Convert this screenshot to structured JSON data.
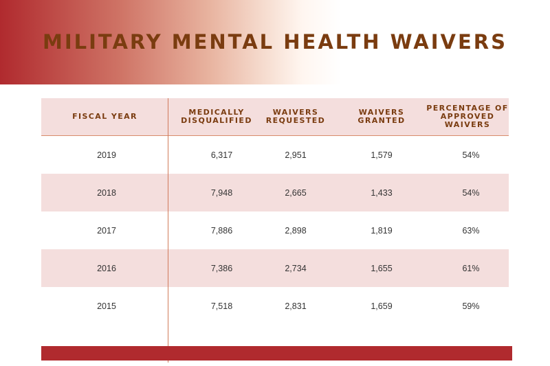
{
  "header": {
    "title": "MILITARY MENTAL HEALTH WAIVERS"
  },
  "colors": {
    "banner_red": "#b02a2e",
    "title_brown": "#7a3c10",
    "row_pink": "#f4dedd",
    "divider": "#d07a5a"
  },
  "table": {
    "columns": [
      {
        "label": "FISCAL YEAR"
      },
      {
        "label": "MEDICALLY\nDISQUALIFIED"
      },
      {
        "label": "WAIVERS\nREQUESTED"
      },
      {
        "label": "WAIVERS\nGRANTED"
      },
      {
        "label": "PERCENTAGE OF\nAPPROVED\nWAIVERS"
      }
    ],
    "rows": [
      [
        "2019",
        "6,317",
        "2,951",
        "1,579",
        "54%"
      ],
      [
        "2018",
        "7,948",
        "2,665",
        "1,433",
        "54%"
      ],
      [
        "2017",
        "7,886",
        "2,898",
        "1,819",
        "63%"
      ],
      [
        "2016",
        "7,386",
        "2,734",
        "1,655",
        "61%"
      ],
      [
        "2015",
        "7,518",
        "2,831",
        "1,659",
        "59%"
      ]
    ]
  }
}
